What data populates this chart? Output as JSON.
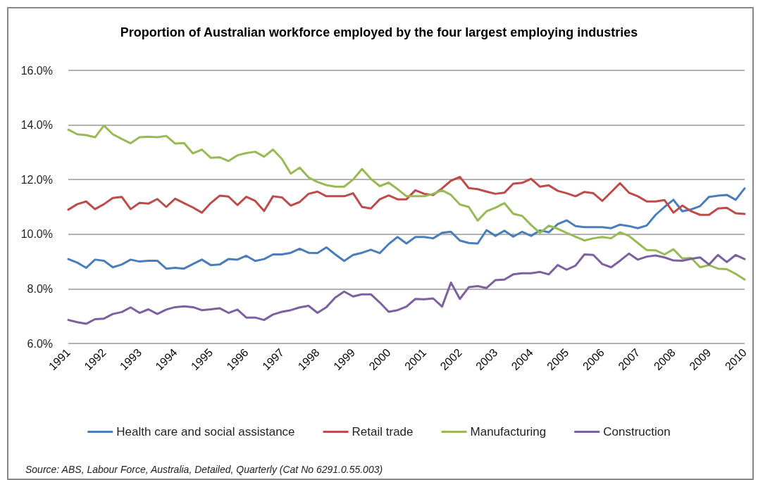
{
  "chart_data": {
    "type": "line",
    "title": "Proportion of Australian workforce employed by the four largest employing industries",
    "categories": [
      "1991",
      null,
      null,
      null,
      "1992",
      null,
      null,
      null,
      "1993",
      null,
      null,
      null,
      "1994",
      null,
      null,
      null,
      "1995",
      null,
      null,
      null,
      "1996",
      null,
      null,
      null,
      "1997",
      null,
      null,
      null,
      "1998",
      null,
      null,
      null,
      "1999",
      null,
      null,
      null,
      "2000",
      null,
      null,
      null,
      "2001",
      null,
      null,
      null,
      "2002",
      null,
      null,
      null,
      "2003",
      null,
      null,
      null,
      "2004",
      null,
      null,
      null,
      "2005",
      null,
      null,
      null,
      "2006",
      null,
      null,
      null,
      "2007",
      null,
      null,
      null,
      "2008",
      null,
      null,
      null,
      "2009",
      null,
      null,
      null,
      "2010"
    ],
    "series": [
      {
        "name": "Health care and social assistance",
        "color": "#4a7ebb",
        "values": [
          9.09,
          8.96,
          8.77,
          9.07,
          9.03,
          8.79,
          8.89,
          9.07,
          9.0,
          9.03,
          9.03,
          8.74,
          8.77,
          8.74,
          8.91,
          9.07,
          8.87,
          8.89,
          9.09,
          9.07,
          9.21,
          9.02,
          9.09,
          9.26,
          9.26,
          9.32,
          9.47,
          9.32,
          9.31,
          9.52,
          9.26,
          9.02,
          9.24,
          9.32,
          9.43,
          9.31,
          9.64,
          9.9,
          9.66,
          9.9,
          9.9,
          9.85,
          10.05,
          10.09,
          9.77,
          9.68,
          9.66,
          10.15,
          9.94,
          10.13,
          9.91,
          10.09,
          9.94,
          10.14,
          10.07,
          10.37,
          10.51,
          10.3,
          10.26,
          10.26,
          10.26,
          10.22,
          10.35,
          10.3,
          10.22,
          10.32,
          10.71,
          11.0,
          11.26,
          10.84,
          10.91,
          11.03,
          11.37,
          11.41,
          11.44,
          11.26,
          11.68
        ]
      },
      {
        "name": "Retail trade",
        "color": "#be4b48",
        "values": [
          10.9,
          11.1,
          11.2,
          10.92,
          11.1,
          11.33,
          11.37,
          10.92,
          11.15,
          11.12,
          11.29,
          11.0,
          11.3,
          11.14,
          10.98,
          10.79,
          11.14,
          11.41,
          11.38,
          11.07,
          11.37,
          11.22,
          10.85,
          11.39,
          11.35,
          11.05,
          11.18,
          11.48,
          11.56,
          11.39,
          11.39,
          11.39,
          11.5,
          11.0,
          10.94,
          11.28,
          11.42,
          11.28,
          11.28,
          11.61,
          11.48,
          11.44,
          11.68,
          11.96,
          12.1,
          11.69,
          11.65,
          11.56,
          11.48,
          11.52,
          11.85,
          11.88,
          12.03,
          11.74,
          11.79,
          11.59,
          11.5,
          11.39,
          11.55,
          11.5,
          11.22,
          11.54,
          11.87,
          11.52,
          11.39,
          11.2,
          11.2,
          11.25,
          10.79,
          11.05,
          10.84,
          10.71,
          10.71,
          10.94,
          10.97,
          10.77,
          10.74
        ]
      },
      {
        "name": "Manufacturing",
        "color": "#98b954",
        "values": [
          13.83,
          13.66,
          13.63,
          13.55,
          13.98,
          13.66,
          13.49,
          13.33,
          13.55,
          13.57,
          13.55,
          13.6,
          13.32,
          13.34,
          12.96,
          13.1,
          12.8,
          12.82,
          12.68,
          12.89,
          12.97,
          13.02,
          12.84,
          13.1,
          12.76,
          12.22,
          12.44,
          12.08,
          11.91,
          11.8,
          11.74,
          11.74,
          12.0,
          12.39,
          12.03,
          11.76,
          11.89,
          11.65,
          11.39,
          11.39,
          11.39,
          11.48,
          11.61,
          11.44,
          11.09,
          11.0,
          10.5,
          10.84,
          10.97,
          11.14,
          10.75,
          10.67,
          10.34,
          10.05,
          10.31,
          10.2,
          10.05,
          9.91,
          9.77,
          9.85,
          9.9,
          9.85,
          10.07,
          9.94,
          9.68,
          9.42,
          9.41,
          9.26,
          9.45,
          9.11,
          9.13,
          8.79,
          8.87,
          8.74,
          8.72,
          8.55,
          8.34
        ]
      },
      {
        "name": "Construction",
        "color": "#7d60a0",
        "values": [
          6.86,
          6.78,
          6.72,
          6.89,
          6.91,
          7.08,
          7.15,
          7.32,
          7.12,
          7.25,
          7.08,
          7.24,
          7.33,
          7.36,
          7.33,
          7.22,
          7.25,
          7.29,
          7.12,
          7.24,
          6.95,
          6.95,
          6.86,
          7.06,
          7.16,
          7.22,
          7.32,
          7.38,
          7.12,
          7.33,
          7.68,
          7.9,
          7.72,
          7.8,
          7.8,
          7.5,
          7.16,
          7.22,
          7.35,
          7.63,
          7.62,
          7.65,
          7.35,
          8.23,
          7.63,
          8.06,
          8.1,
          8.03,
          8.32,
          8.34,
          8.53,
          8.57,
          8.57,
          8.62,
          8.53,
          8.87,
          8.7,
          8.85,
          9.26,
          9.24,
          8.91,
          8.79,
          9.03,
          9.29,
          9.07,
          9.18,
          9.22,
          9.15,
          9.04,
          9.03,
          9.1,
          9.15,
          8.89,
          9.24,
          8.98,
          9.24,
          9.09
        ]
      }
    ],
    "ylim": [
      6,
      16
    ],
    "yticks": [
      {
        "value": 6,
        "label": "6.0%"
      },
      {
        "value": 8,
        "label": "8.0%"
      },
      {
        "value": 10,
        "label": "10.0%"
      },
      {
        "value": 12,
        "label": "12.0%"
      },
      {
        "value": 14,
        "label": "14.0%"
      },
      {
        "value": 16,
        "label": "16.0%"
      }
    ],
    "grid": "y",
    "legend": "bottom",
    "marker": "none",
    "line_style": "solid",
    "annotations": [
      "Source: ABS, Labour Force, Australia, Detailed, Quarterly (Cat No 6291.0.55.003)"
    ]
  }
}
